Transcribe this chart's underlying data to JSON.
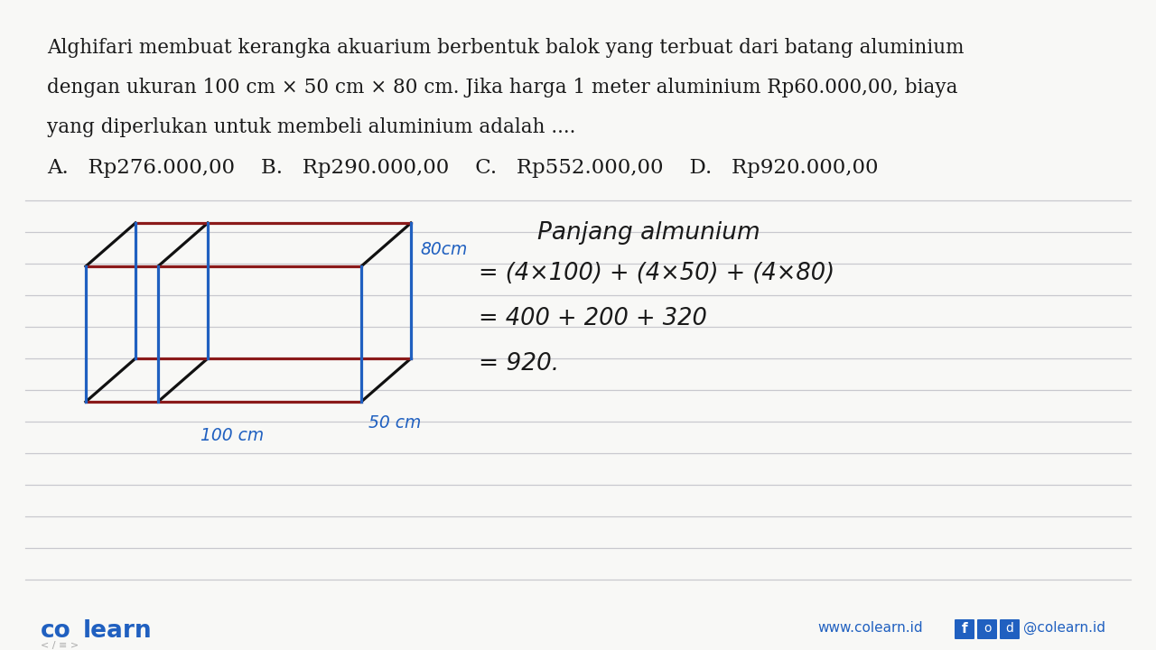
{
  "background_color": "#f0f0f0",
  "title_lines": [
    "Alghifari membuat kerangka akuarium berbentuk balok yang terbuat dari batang aluminium",
    "dengan ukuran 100 cm × 50 cm × 80 cm. Jika harga 1 meter aluminium Rp60.000,00, biaya",
    "yang diperlukan untuk membeli aluminium adalah ...."
  ],
  "options_text": "A.   Rp276.000,00    B.   Rp290.000,00    C.   Rp552.000,00    D.   Rp920.000,00",
  "handwriting_title": "Panjang almunium",
  "hw_line1": "= (4×100) + (4×50) + (4×80)",
  "hw_line2": "= 400 + 200 + 320",
  "hw_line3": "= 920.",
  "label_80cm": "80cm",
  "label_50cm": "50 cm",
  "label_100cm": "100 cm",
  "box_color_dark_red": "#8B1A1A",
  "box_color_blue": "#2060C0",
  "box_color_black": "#111111",
  "line_color_gray": "#c0c0c8",
  "text_color_dark": "#1a1a1a",
  "text_color_blue": "#1B5FC0",
  "background_color_white": "#f8f8f6",
  "colearn_color": "#2060C0"
}
